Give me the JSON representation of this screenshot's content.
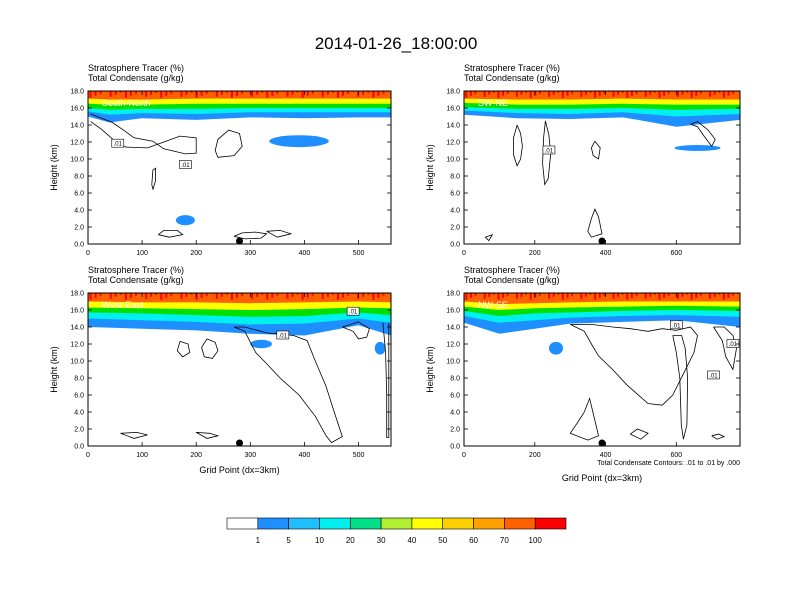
{
  "title": "2014-01-26_18:00:00",
  "colors": {
    "levels": [
      "#ffffff",
      "#1f8fff",
      "#1fbfff",
      "#00f0f0",
      "#00e08a",
      "#00e000",
      "#b0f030",
      "#ffff00",
      "#ffd000",
      "#ffa000",
      "#ff6000",
      "#ff0000"
    ]
  },
  "chart_data": [
    {
      "type": "heatmap",
      "label": "South-North",
      "subtitle_line1": "Stratosphere Tracer   (%)",
      "subtitle_line2": "Total Condensate   (g/kg)",
      "ylabel": "Height (km)",
      "xlabel": "",
      "xlim": [
        0,
        560
      ],
      "ylim": [
        0,
        18
      ],
      "xticks": [
        "0",
        "100",
        "200",
        "300",
        "400",
        "500"
      ],
      "yticks": [
        "0.0",
        "2.0",
        "4.0",
        "6.0",
        "8.0",
        "10.0",
        "12.0",
        "14.0",
        "16.0",
        "18.0"
      ],
      "contour_labels": [
        ".01",
        ".01"
      ],
      "tracer_profile": {
        "x": [
          0,
          40,
          100,
          200,
          300,
          400,
          500,
          560
        ],
        "z1": [
          15.0,
          14.3,
          14.8,
          14.6,
          14.9,
          14.8,
          14.9,
          14.9
        ],
        "z10": [
          15.6,
          15.2,
          15.4,
          15.3,
          15.5,
          15.5,
          15.5,
          15.5
        ],
        "z30": [
          16.0,
          15.8,
          15.9,
          15.9,
          16.0,
          16.0,
          16.0,
          16.0
        ],
        "z50": [
          16.5,
          16.4,
          16.4,
          16.5,
          16.5,
          16.5,
          16.5,
          16.5
        ],
        "z70": [
          17.1,
          17.0,
          17.0,
          17.1,
          17.1,
          17.1,
          17.1,
          17.1
        ]
      },
      "tracer_patches": [
        {
          "x": 390,
          "z": 12.1,
          "w": 110,
          "h": 1.4
        },
        {
          "x": 180,
          "z": 2.8,
          "w": 35,
          "h": 1.2
        }
      ]
    },
    {
      "type": "heatmap",
      "label": "SW-NE",
      "subtitle_line1": "Stratosphere Tracer   (%)",
      "subtitle_line2": "Total Condensate   (g/kg)",
      "ylabel": "Height (km)",
      "xlabel": "",
      "xlim": [
        0,
        780
      ],
      "ylim": [
        0,
        18
      ],
      "xticks": [
        "0",
        "200",
        "400",
        "600"
      ],
      "yticks": [
        "0.0",
        "2.0",
        "4.0",
        "6.0",
        "8.0",
        "10.0",
        "12.0",
        "14.0",
        "16.0",
        "18.0"
      ],
      "contour_labels": [
        ".01"
      ],
      "tracer_profile": {
        "x": [
          0,
          150,
          300,
          450,
          600,
          780
        ],
        "z1": [
          15.2,
          14.8,
          14.7,
          14.9,
          13.8,
          14.6
        ],
        "z10": [
          15.7,
          15.4,
          15.3,
          15.5,
          15.0,
          15.3
        ],
        "z30": [
          16.1,
          15.9,
          15.9,
          16.0,
          15.8,
          15.9
        ],
        "z50": [
          16.6,
          16.4,
          16.4,
          16.5,
          16.4,
          16.4
        ],
        "z70": [
          17.1,
          17.0,
          17.0,
          17.1,
          17.0,
          17.0
        ]
      },
      "tracer_patches": [
        {
          "x": 660,
          "z": 11.3,
          "w": 130,
          "h": 0.7
        }
      ]
    },
    {
      "type": "heatmap",
      "label": "West-East",
      "subtitle_line1": "Stratosphere Tracer   (%)",
      "subtitle_line2": "Total Condensate   (g/kg)",
      "ylabel": "Height (km)",
      "xlabel": "Grid Point (dx=3km)",
      "xlim": [
        0,
        560
      ],
      "ylim": [
        0,
        18
      ],
      "xticks": [
        "0",
        "100",
        "200",
        "300",
        "400",
        "500"
      ],
      "yticks": [
        "0.0",
        "2.0",
        "4.0",
        "6.0",
        "8.0",
        "10.0",
        "12.0",
        "14.0",
        "16.0",
        "18.0"
      ],
      "contour_labels": [
        ".01",
        ".01"
      ],
      "tracer_profile": {
        "x": [
          0,
          100,
          200,
          300,
          400,
          500,
          560
        ],
        "z1": [
          14.0,
          13.8,
          13.6,
          13.2,
          13.0,
          14.2,
          13.0
        ],
        "z10": [
          15.0,
          14.8,
          14.6,
          14.3,
          14.4,
          15.0,
          14.5
        ],
        "z30": [
          15.7,
          15.6,
          15.4,
          15.2,
          15.3,
          15.7,
          15.4
        ],
        "z50": [
          16.3,
          16.2,
          16.1,
          16.0,
          16.1,
          16.3,
          16.2
        ],
        "z70": [
          17.0,
          16.9,
          16.9,
          16.8,
          16.9,
          17.0,
          16.9
        ]
      },
      "tracer_patches": [
        {
          "x": 320,
          "z": 12.0,
          "w": 40,
          "h": 1.0
        },
        {
          "x": 540,
          "z": 11.5,
          "w": 20,
          "h": 1.5
        }
      ]
    },
    {
      "type": "heatmap",
      "label": "NW-SE",
      "subtitle_line1": "Stratosphere Tracer   (%)",
      "subtitle_line2": "Total Condensate   (g/kg)",
      "ylabel": "Height (km)",
      "xlabel": "Grid Point (dx=3km)",
      "note": "Total Condensate Contours: .01 to .01 by .000",
      "xlim": [
        0,
        780
      ],
      "ylim": [
        0,
        18
      ],
      "xticks": [
        "0",
        "200",
        "400",
        "600"
      ],
      "yticks": [
        "0.0",
        "2.0",
        "4.0",
        "6.0",
        "8.0",
        "10.0",
        "12.0",
        "14.0",
        "16.0",
        "18.0"
      ],
      "contour_labels": [
        ".01",
        ".01",
        ".01"
      ],
      "tracer_profile": {
        "x": [
          0,
          100,
          200,
          300,
          450,
          600,
          780
        ],
        "z1": [
          14.5,
          13.2,
          13.8,
          14.4,
          14.6,
          14.8,
          14.0
        ],
        "z10": [
          15.3,
          14.5,
          14.8,
          15.1,
          15.3,
          15.4,
          15.2
        ],
        "z30": [
          15.9,
          15.3,
          15.6,
          15.7,
          15.9,
          16.0,
          15.9
        ],
        "z50": [
          16.4,
          16.0,
          16.2,
          16.3,
          16.4,
          16.5,
          16.4
        ],
        "z70": [
          17.0,
          16.7,
          16.8,
          16.9,
          17.0,
          17.0,
          17.0
        ]
      },
      "tracer_patches": [
        {
          "x": 260,
          "z": 11.5,
          "w": 40,
          "h": 1.5
        }
      ]
    }
  ],
  "colorbar": {
    "labels": [
      "1",
      "5",
      "10",
      "20",
      "30",
      "40",
      "50",
      "60",
      "70",
      "100"
    ]
  }
}
